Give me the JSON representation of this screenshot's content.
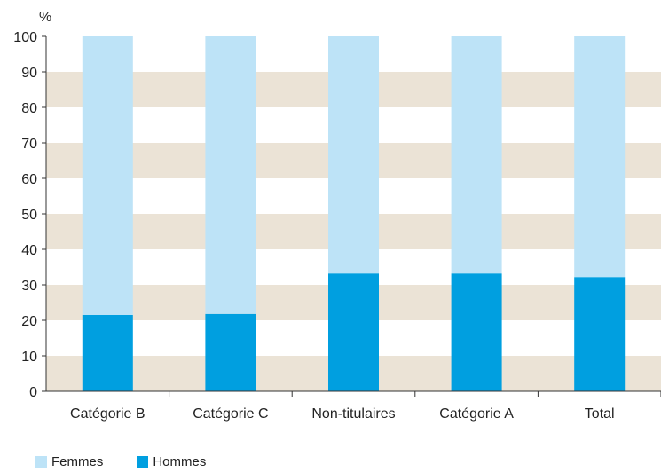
{
  "chart_data": {
    "type": "bar",
    "stacked": true,
    "unit_label": "%",
    "categories": [
      "Catégorie B",
      "Catégorie C",
      "Non-titulaires",
      "Catégorie A",
      "Total"
    ],
    "series": [
      {
        "name": "Hommes",
        "values": [
          21.5,
          21.8,
          33.2,
          33.2,
          32.2
        ],
        "color": "#009fe0"
      },
      {
        "name": "Femmes",
        "values": [
          78.5,
          78.2,
          66.8,
          66.8,
          67.8
        ],
        "color": "#bde3f7"
      }
    ],
    "ylim": [
      0,
      100
    ],
    "yticks": [
      0,
      10,
      20,
      30,
      40,
      50,
      60,
      70,
      80,
      90,
      100
    ],
    "band_color": "#ebe3d6",
    "legend": {
      "position": "bottom-left",
      "items": [
        {
          "label": "Femmes",
          "color": "#bde3f7"
        },
        {
          "label": "Hommes",
          "color": "#009fe0"
        }
      ]
    }
  }
}
